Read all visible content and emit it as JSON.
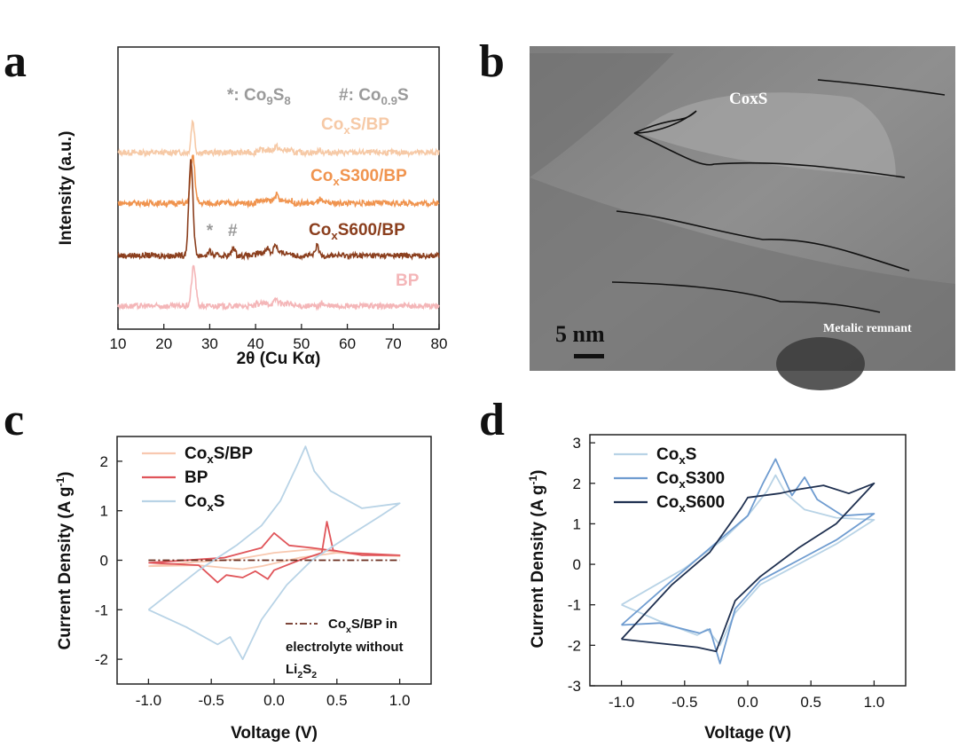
{
  "panels": {
    "a": {
      "letter": "a"
    },
    "b": {
      "letter": "b"
    },
    "c": {
      "letter": "c"
    },
    "d": {
      "letter": "d"
    }
  },
  "chart_data": [
    {
      "id": "a",
      "type": "line",
      "xlabel": "2θ (Cu Kα)",
      "ylabel": "Intensity (a.u.)",
      "xlim": [
        10,
        80
      ],
      "xticks": [
        10,
        20,
        30,
        40,
        50,
        60,
        70,
        80
      ],
      "annotation": {
        "star": "*: Co9S8",
        "hash": "#: Co0.9S"
      },
      "peak_markers": [
        {
          "symbol": "*",
          "x": 30
        },
        {
          "symbol": "#",
          "x": 35
        }
      ],
      "series": [
        {
          "name": "CoxS/BP",
          "color": "#f6c9a6",
          "offset": 3,
          "peaks": [
            [
              26.3,
              2.0
            ],
            [
              44.5,
              0.25
            ],
            [
              54.0,
              0.15
            ]
          ]
        },
        {
          "name": "CoxS300/BP",
          "color": "#f0944f",
          "offset": 2,
          "peaks": [
            [
              26.3,
              3.0
            ],
            [
              44.5,
              0.4
            ],
            [
              54.0,
              0.25
            ]
          ]
        },
        {
          "name": "CoxS600/BP",
          "color": "#8b3f1e",
          "offset": 1,
          "peaks": [
            [
              25.9,
              6.0
            ],
            [
              30.0,
              0.25
            ],
            [
              35.2,
              0.5
            ],
            [
              42.5,
              0.35
            ],
            [
              44.3,
              0.6
            ],
            [
              53.4,
              0.6
            ]
          ]
        },
        {
          "name": "BP",
          "color": "#f4b6b8",
          "offset": 0,
          "peaks": [
            [
              26.5,
              2.5
            ],
            [
              44.5,
              0.3
            ],
            [
              54.5,
              0.2
            ]
          ]
        }
      ]
    },
    {
      "id": "b",
      "type": "image",
      "labels": {
        "phase": "CoxS",
        "remnant": "Metalic remnant",
        "scale": "5 nm"
      }
    },
    {
      "id": "c",
      "type": "line",
      "xlabel": "Voltage (V)",
      "ylabel": "Current Density (A g-1)",
      "xlim": [
        -1.25,
        1.25
      ],
      "ylim": [
        -2.5,
        2.5
      ],
      "xticks": [
        -1.0,
        -0.5,
        0.0,
        0.5,
        1.0
      ],
      "yticks": [
        -2,
        -1,
        0,
        1,
        2
      ],
      "legend_position": "top-left",
      "series": [
        {
          "name": "CoxS/BP",
          "color": "#f8c8b0",
          "points": [
            [
              -1.0,
              -0.12
            ],
            [
              -0.6,
              -0.1
            ],
            [
              -0.4,
              -0.15
            ],
            [
              -0.25,
              -0.18
            ],
            [
              -0.1,
              -0.12
            ],
            [
              0.2,
              0.05
            ],
            [
              0.5,
              0.15
            ],
            [
              0.8,
              0.1
            ],
            [
              1.0,
              0.08
            ],
            [
              0.6,
              0.14
            ],
            [
              0.3,
              0.22
            ],
            [
              0.0,
              0.15
            ],
            [
              -0.3,
              0.02
            ],
            [
              -0.7,
              -0.05
            ],
            [
              -1.0,
              -0.12
            ]
          ]
        },
        {
          "name": "BP",
          "color": "#e0555a",
          "points": [
            [
              -1.0,
              -0.05
            ],
            [
              -0.6,
              -0.1
            ],
            [
              -0.45,
              -0.45
            ],
            [
              -0.38,
              -0.3
            ],
            [
              -0.25,
              -0.35
            ],
            [
              -0.15,
              -0.22
            ],
            [
              -0.05,
              -0.38
            ],
            [
              0.0,
              -0.2
            ],
            [
              0.2,
              0.0
            ],
            [
              0.38,
              0.15
            ],
            [
              0.42,
              0.78
            ],
            [
              0.47,
              0.2
            ],
            [
              0.7,
              0.1
            ],
            [
              1.0,
              0.1
            ],
            [
              0.6,
              0.15
            ],
            [
              0.3,
              0.25
            ],
            [
              0.12,
              0.3
            ],
            [
              0.0,
              0.55
            ],
            [
              -0.1,
              0.25
            ],
            [
              -0.4,
              0.05
            ],
            [
              -1.0,
              -0.05
            ]
          ]
        },
        {
          "name": "CoxS",
          "color": "#b8d3e6",
          "points": [
            [
              -1.0,
              -1.0
            ],
            [
              -0.7,
              -1.35
            ],
            [
              -0.45,
              -1.7
            ],
            [
              -0.35,
              -1.55
            ],
            [
              -0.25,
              -2.0
            ],
            [
              -0.1,
              -1.2
            ],
            [
              0.1,
              -0.5
            ],
            [
              0.3,
              0.0
            ],
            [
              0.6,
              0.5
            ],
            [
              0.85,
              0.9
            ],
            [
              1.0,
              1.15
            ],
            [
              0.7,
              1.05
            ],
            [
              0.45,
              1.4
            ],
            [
              0.32,
              1.8
            ],
            [
              0.25,
              2.3
            ],
            [
              0.18,
              1.9
            ],
            [
              0.05,
              1.2
            ],
            [
              -0.1,
              0.7
            ],
            [
              -0.3,
              0.3
            ],
            [
              -0.6,
              -0.2
            ],
            [
              -1.0,
              -1.0
            ]
          ]
        },
        {
          "name": "CoxS/BP in electrolyte without Li2S2",
          "color": "#6b2d1e",
          "dash": "8 3 2 3",
          "points": [
            [
              -1.0,
              0.0
            ],
            [
              1.0,
              0.0
            ]
          ]
        }
      ],
      "annotation": "CoxS/BP in electrolyte without Li2S2"
    },
    {
      "id": "d",
      "type": "line",
      "xlabel": "Voltage (V)",
      "ylabel": "Current Density (A g-1)",
      "xlim": [
        -1.25,
        1.25
      ],
      "ylim": [
        -3,
        3.2
      ],
      "xticks": [
        -1.0,
        -0.5,
        0.0,
        0.5,
        1.0
      ],
      "yticks": [
        -3,
        -2,
        -1,
        0,
        1,
        2,
        3
      ],
      "legend_position": "top-left",
      "series": [
        {
          "name": "CoxS",
          "color": "#b8d3e6",
          "points": [
            [
              -1.0,
              -1.0
            ],
            [
              -0.7,
              -1.4
            ],
            [
              -0.4,
              -1.75
            ],
            [
              -0.32,
              -1.6
            ],
            [
              -0.22,
              -2.0
            ],
            [
              -0.1,
              -1.2
            ],
            [
              0.1,
              -0.5
            ],
            [
              0.4,
              0.0
            ],
            [
              0.7,
              0.5
            ],
            [
              1.0,
              1.1
            ],
            [
              0.7,
              1.15
            ],
            [
              0.45,
              1.35
            ],
            [
              0.3,
              1.75
            ],
            [
              0.22,
              2.2
            ],
            [
              0.15,
              1.8
            ],
            [
              0.0,
              1.2
            ],
            [
              -0.2,
              0.6
            ],
            [
              -0.5,
              -0.1
            ],
            [
              -1.0,
              -1.0
            ]
          ]
        },
        {
          "name": "CoxS300",
          "color": "#6f9cd0",
          "points": [
            [
              -1.0,
              -1.5
            ],
            [
              -0.7,
              -1.45
            ],
            [
              -0.38,
              -1.7
            ],
            [
              -0.3,
              -1.6
            ],
            [
              -0.22,
              -2.45
            ],
            [
              -0.1,
              -1.1
            ],
            [
              0.1,
              -0.4
            ],
            [
              0.4,
              0.1
            ],
            [
              0.7,
              0.6
            ],
            [
              1.0,
              1.25
            ],
            [
              0.75,
              1.2
            ],
            [
              0.55,
              1.6
            ],
            [
              0.45,
              2.15
            ],
            [
              0.35,
              1.7
            ],
            [
              0.22,
              2.6
            ],
            [
              0.12,
              2.0
            ],
            [
              0.0,
              1.2
            ],
            [
              -0.3,
              0.4
            ],
            [
              -0.6,
              -0.4
            ],
            [
              -1.0,
              -1.5
            ]
          ]
        },
        {
          "name": "CoxS600",
          "color": "#1f3050",
          "points": [
            [
              -1.0,
              -1.85
            ],
            [
              -0.7,
              -1.95
            ],
            [
              -0.4,
              -2.05
            ],
            [
              -0.25,
              -2.15
            ],
            [
              -0.1,
              -0.9
            ],
            [
              0.1,
              -0.3
            ],
            [
              0.4,
              0.4
            ],
            [
              0.7,
              1.0
            ],
            [
              1.0,
              2.0
            ],
            [
              0.8,
              1.75
            ],
            [
              0.6,
              1.95
            ],
            [
              0.4,
              1.85
            ],
            [
              0.25,
              1.75
            ],
            [
              0.0,
              1.65
            ],
            [
              -0.05,
              1.4
            ],
            [
              -0.3,
              0.3
            ],
            [
              -0.6,
              -0.5
            ],
            [
              -1.0,
              -1.85
            ]
          ]
        }
      ]
    }
  ]
}
